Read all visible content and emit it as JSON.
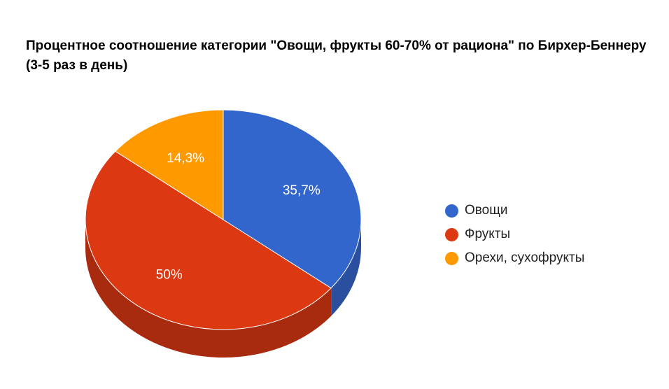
{
  "chart_data": {
    "type": "pie",
    "title": "Процентное соотношение категории \"Овощи, фрукты 60-70% от рациона\" по Бирхер-Беннеру (3-5 раз в день)",
    "categories": [
      "Овощи",
      "Фрукты",
      "Орехи, сухофрукты"
    ],
    "values": [
      35.7,
      50,
      14.3
    ],
    "data_labels": [
      "35,7%",
      "50%",
      "14,3%"
    ],
    "colors": [
      "#3366cc",
      "#dc3912",
      "#ff9900"
    ],
    "side_colors": [
      "#2a4f9e",
      "#a92b0f",
      "#c77800"
    ],
    "legend_position": "right",
    "style": "3d"
  }
}
